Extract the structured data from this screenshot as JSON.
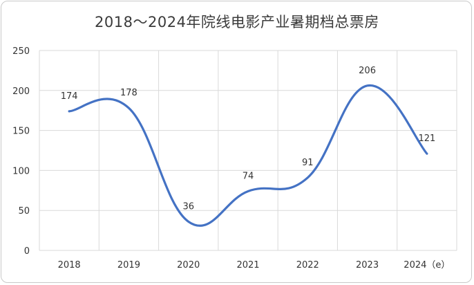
{
  "chart_data": {
    "type": "line",
    "title": "2018～2024年院线电影产业暑期档总票房",
    "categories": [
      "2018",
      "2019",
      "2020",
      "2021",
      "2022",
      "2023",
      "2024（e）"
    ],
    "series": [
      {
        "values": [
          174,
          178,
          36,
          74,
          91,
          206,
          121
        ]
      }
    ],
    "data_labels": [
      "174",
      "178",
      "36",
      "74",
      "91",
      "206",
      "121"
    ],
    "ylim": [
      0,
      250
    ],
    "yticks": [
      0,
      50,
      100,
      150,
      200,
      250
    ],
    "xlabel": "",
    "ylabel": "",
    "grid": true,
    "line_color": "#4472c4",
    "grid_color": "#d9d9d9"
  }
}
